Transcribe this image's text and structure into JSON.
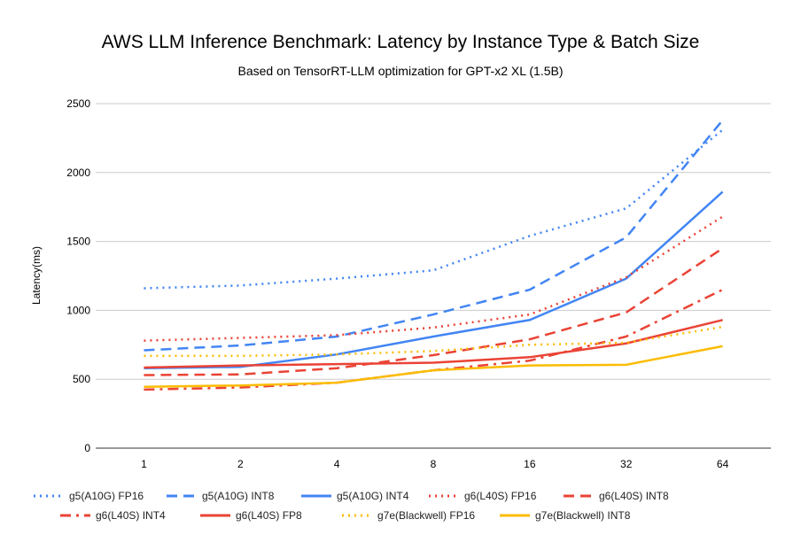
{
  "chart_data": {
    "type": "line",
    "title": "AWS LLM Inference Benchmark: Latency by Instance Type & Batch Size",
    "subtitle": "Based on TensorRT-LLM optimization for GPT-x2 XL (1.5B)",
    "xlabel": "",
    "ylabel": "Latency(ms)",
    "ylim": [
      0,
      2500
    ],
    "yticks": [
      "0",
      "500",
      "1000",
      "1500",
      "2000",
      "2500"
    ],
    "categories": [
      "1",
      "2",
      "4",
      "8",
      "16",
      "32",
      "64"
    ],
    "grid": true,
    "legend_position": "bottom",
    "series": [
      {
        "name": "g5(A10G) FP16",
        "color": "#4285f4",
        "style": "dotted",
        "values": [
          1160,
          1180,
          1230,
          1290,
          1540,
          1740,
          2310
        ]
      },
      {
        "name": "g5(A10G) INT8",
        "color": "#4285f4",
        "style": "dashed",
        "values": [
          710,
          745,
          810,
          970,
          1150,
          1530,
          2380
        ]
      },
      {
        "name": "g5(A10G) INT4",
        "color": "#4285f4",
        "style": "solid",
        "values": [
          580,
          590,
          680,
          810,
          930,
          1230,
          1860
        ]
      },
      {
        "name": "g6(L40S) FP16",
        "color": "#ea4335",
        "style": "dotted",
        "values": [
          780,
          800,
          820,
          875,
          970,
          1240,
          1680
        ]
      },
      {
        "name": "g6(L40S) INT8",
        "color": "#ea4335",
        "style": "dashed",
        "values": [
          530,
          535,
          580,
          675,
          790,
          985,
          1450
        ]
      },
      {
        "name": "g6(L40S) INT4",
        "color": "#ea4335",
        "style": "dashdot",
        "values": [
          425,
          440,
          475,
          565,
          635,
          810,
          1150
        ]
      },
      {
        "name": "g6(L40S) FP8",
        "color": "#ea4335",
        "style": "solid",
        "values": [
          585,
          600,
          610,
          620,
          660,
          760,
          930
        ]
      },
      {
        "name": "g7e(Blackwell) FP16",
        "color": "#fbbc04",
        "style": "dotted",
        "values": [
          670,
          670,
          680,
          705,
          750,
          765,
          880
        ]
      },
      {
        "name": "g7e(Blackwell) INT8",
        "color": "#fbbc04",
        "style": "solid",
        "values": [
          445,
          455,
          475,
          565,
          600,
          605,
          740
        ]
      }
    ]
  }
}
